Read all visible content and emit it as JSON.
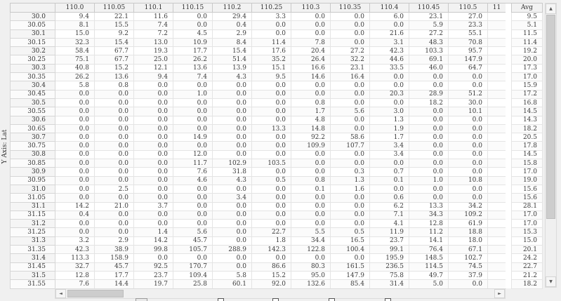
{
  "y_axis": {
    "label": "Y Axis: Lat"
  },
  "avg": {
    "header": "Avg"
  },
  "scrollbars": {
    "up": "▲",
    "down": "▼",
    "left": "◄",
    "right": "►"
  },
  "colors": {
    "window_bg": "#f0f0f0",
    "grid_bg": "#ffffff",
    "header_bg": "#f2f2f2",
    "scroll_thumb": "#cdcdcd"
  },
  "grid": {
    "columns": [
      "110.0",
      "110.05",
      "110.1",
      "110.15",
      "110.2",
      "110.25",
      "110.3",
      "110.35",
      "110.4",
      "110.45",
      "110.5",
      "11"
    ],
    "rows": [
      {
        "label": "30.0",
        "values": [
          "9.4",
          "22.1",
          "11.6",
          "0.0",
          "29.4",
          "3.3",
          "0.0",
          "0.0",
          "6.0",
          "23.1",
          "27.0",
          ""
        ],
        "avg": "9.5"
      },
      {
        "label": "30.05",
        "values": [
          "8.1",
          "15.5",
          "7.4",
          "0.0",
          "0.4",
          "0.0",
          "0.0",
          "0.0",
          "0.0",
          "5.9",
          "23.3",
          ""
        ],
        "avg": "5.1"
      },
      {
        "label": "30.1",
        "values": [
          "15.0",
          "9.2",
          "7.2",
          "4.5",
          "2.9",
          "0.0",
          "0.0",
          "0.0",
          "21.6",
          "27.2",
          "55.1",
          ""
        ],
        "avg": "11.5"
      },
      {
        "label": "30.15",
        "values": [
          "32.3",
          "15.4",
          "13.0",
          "10.9",
          "8.4",
          "11.4",
          "7.8",
          "0.0",
          "3.1",
          "48.3",
          "70.8",
          ""
        ],
        "avg": "11.4"
      },
      {
        "label": "30.2",
        "values": [
          "58.4",
          "67.7",
          "19.3",
          "17.7",
          "15.4",
          "17.6",
          "20.4",
          "27.2",
          "42.3",
          "103.3",
          "95.7",
          ""
        ],
        "avg": "19.2"
      },
      {
        "label": "30.25",
        "values": [
          "75.1",
          "67.7",
          "25.0",
          "26.2",
          "51.4",
          "35.2",
          "26.4",
          "32.2",
          "44.6",
          "69.1",
          "147.9",
          ""
        ],
        "avg": "20.0"
      },
      {
        "label": "30.3",
        "values": [
          "40.8",
          "15.2",
          "12.1",
          "13.6",
          "13.9",
          "15.1",
          "16.6",
          "23.1",
          "33.5",
          "46.0",
          "64.7",
          ""
        ],
        "avg": "17.3"
      },
      {
        "label": "30.35",
        "values": [
          "26.2",
          "13.6",
          "9.4",
          "7.4",
          "4.3",
          "9.5",
          "14.6",
          "16.4",
          "0.0",
          "0.0",
          "0.0",
          ""
        ],
        "avg": "17.0"
      },
      {
        "label": "30.4",
        "values": [
          "5.8",
          "0.8",
          "0.0",
          "0.0",
          "0.0",
          "0.0",
          "0.0",
          "0.0",
          "0.0",
          "0.0",
          "0.0",
          ""
        ],
        "avg": "15.9"
      },
      {
        "label": "30.45",
        "values": [
          "0.0",
          "0.0",
          "0.0",
          "1.0",
          "0.0",
          "0.0",
          "0.0",
          "0.0",
          "20.3",
          "28.9",
          "51.2",
          ""
        ],
        "avg": "17.2"
      },
      {
        "label": "30.5",
        "values": [
          "0.0",
          "0.0",
          "0.0",
          "0.0",
          "0.0",
          "0.0",
          "0.8",
          "0.0",
          "0.0",
          "18.2",
          "30.0",
          ""
        ],
        "avg": "16.8"
      },
      {
        "label": "30.55",
        "values": [
          "0.0",
          "0.0",
          "0.0",
          "0.0",
          "0.0",
          "0.0",
          "1.7",
          "5.6",
          "3.0",
          "0.0",
          "10.1",
          ""
        ],
        "avg": "14.5"
      },
      {
        "label": "30.6",
        "values": [
          "0.0",
          "0.0",
          "0.0",
          "0.0",
          "0.0",
          "0.0",
          "4.8",
          "0.0",
          "1.3",
          "0.0",
          "0.0",
          ""
        ],
        "avg": "14.3"
      },
      {
        "label": "30.65",
        "values": [
          "0.0",
          "0.0",
          "0.0",
          "0.0",
          "0.0",
          "13.3",
          "14.8",
          "0.0",
          "1.9",
          "0.0",
          "0.0",
          ""
        ],
        "avg": "18.2"
      },
      {
        "label": "30.7",
        "values": [
          "0.0",
          "0.0",
          "0.0",
          "14.9",
          "0.0",
          "0.0",
          "92.2",
          "58.6",
          "1.7",
          "0.0",
          "0.0",
          ""
        ],
        "avg": "20.5"
      },
      {
        "label": "30.75",
        "values": [
          "0.0",
          "0.0",
          "0.0",
          "0.0",
          "0.0",
          "0.0",
          "109.9",
          "107.7",
          "3.4",
          "0.0",
          "0.0",
          ""
        ],
        "avg": "17.8"
      },
      {
        "label": "30.8",
        "values": [
          "0.0",
          "0.0",
          "0.0",
          "12.0",
          "0.0",
          "0.0",
          "0.0",
          "0.0",
          "3.4",
          "0.0",
          "0.0",
          ""
        ],
        "avg": "14.5"
      },
      {
        "label": "30.85",
        "values": [
          "0.0",
          "0.0",
          "0.0",
          "11.7",
          "102.9",
          "103.5",
          "0.0",
          "0.0",
          "0.0",
          "0.0",
          "0.0",
          ""
        ],
        "avg": "15.8"
      },
      {
        "label": "30.9",
        "values": [
          "0.0",
          "0.0",
          "0.0",
          "7.6",
          "31.8",
          "0.0",
          "0.0",
          "0.3",
          "0.7",
          "0.0",
          "0.0",
          ""
        ],
        "avg": "17.0"
      },
      {
        "label": "30.95",
        "values": [
          "0.0",
          "0.0",
          "0.0",
          "4.6",
          "4.3",
          "0.5",
          "0.8",
          "1.3",
          "0.1",
          "1.0",
          "10.8",
          ""
        ],
        "avg": "19.0"
      },
      {
        "label": "31.0",
        "values": [
          "0.0",
          "2.5",
          "0.0",
          "0.0",
          "0.0",
          "0.0",
          "0.1",
          "1.6",
          "0.0",
          "0.0",
          "0.0",
          ""
        ],
        "avg": "15.6"
      },
      {
        "label": "31.05",
        "values": [
          "0.0",
          "0.0",
          "0.0",
          "0.0",
          "3.4",
          "0.0",
          "0.0",
          "0.0",
          "0.6",
          "0.0",
          "0.0",
          ""
        ],
        "avg": "15.6"
      },
      {
        "label": "31.1",
        "values": [
          "14.2",
          "21.0",
          "3.7",
          "0.0",
          "0.0",
          "0.0",
          "0.0",
          "0.0",
          "6.2",
          "13.3",
          "34.2",
          ""
        ],
        "avg": "28.1"
      },
      {
        "label": "31.15",
        "values": [
          "0.4",
          "0.0",
          "0.0",
          "0.0",
          "0.0",
          "0.0",
          "0.0",
          "0.0",
          "7.1",
          "34.3",
          "109.2",
          ""
        ],
        "avg": "17.0"
      },
      {
        "label": "31.2",
        "values": [
          "0.0",
          "0.0",
          "0.0",
          "0.0",
          "0.0",
          "0.0",
          "0.0",
          "0.0",
          "4.1",
          "12.8",
          "61.9",
          ""
        ],
        "avg": "17.0"
      },
      {
        "label": "31.25",
        "values": [
          "0.0",
          "0.0",
          "1.4",
          "5.6",
          "0.0",
          "22.7",
          "5.5",
          "0.5",
          "11.9",
          "11.2",
          "18.8",
          ""
        ],
        "avg": "15.3"
      },
      {
        "label": "31.3",
        "values": [
          "3.2",
          "2.9",
          "14.2",
          "45.7",
          "0.0",
          "1.8",
          "34.4",
          "16.5",
          "23.7",
          "14.1",
          "18.0",
          ""
        ],
        "avg": "15.0"
      },
      {
        "label": "31.35",
        "values": [
          "42.3",
          "38.9",
          "99.8",
          "105.7",
          "288.9",
          "142.3",
          "122.8",
          "100.4",
          "99.1",
          "76.4",
          "67.1",
          ""
        ],
        "avg": "20.1"
      },
      {
        "label": "31.4",
        "values": [
          "113.3",
          "158.9",
          "0.0",
          "0.0",
          "0.0",
          "0.0",
          "0.0",
          "0.0",
          "195.9",
          "148.5",
          "102.7",
          ""
        ],
        "avg": "24.2"
      },
      {
        "label": "31.45",
        "values": [
          "32.7",
          "45.7",
          "92.5",
          "170.7",
          "0.0",
          "86.6",
          "80.3",
          "161.5",
          "236.5",
          "114.5",
          "74.5",
          ""
        ],
        "avg": "22.7"
      },
      {
        "label": "31.5",
        "values": [
          "12.8",
          "17.7",
          "23.7",
          "109.4",
          "5.8",
          "15.2",
          "95.0",
          "147.9",
          "75.8",
          "49.7",
          "37.9",
          ""
        ],
        "avg": "21.2"
      },
      {
        "label": "31.55",
        "values": [
          "7.6",
          "14.4",
          "19.7",
          "25.8",
          "60.1",
          "92.0",
          "132.6",
          "85.4",
          "31.4",
          "5.0",
          "0.0",
          ""
        ],
        "avg": "18.2"
      }
    ]
  }
}
